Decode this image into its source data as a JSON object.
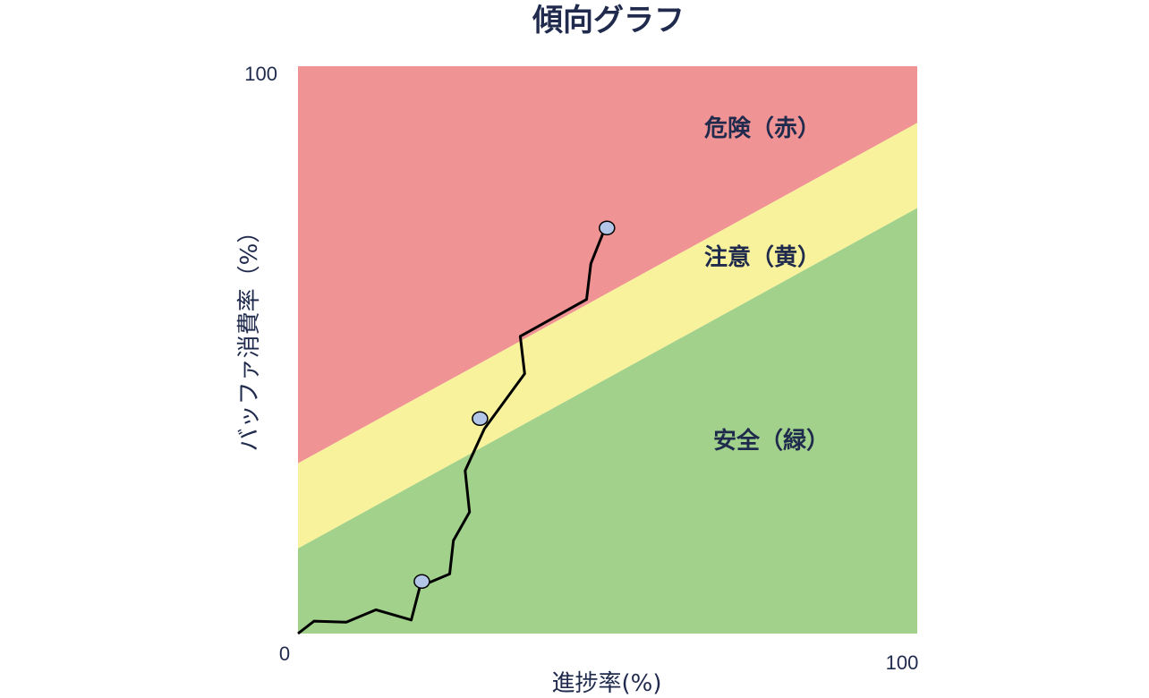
{
  "chart_data": {
    "type": "line",
    "title": "傾向グラフ",
    "xlabel": "進捗率(%)",
    "ylabel": "バッファ消費率（%）",
    "xlim": [
      0,
      100
    ],
    "ylim": [
      0,
      100
    ],
    "x_tick_labels": [
      "0",
      "100"
    ],
    "y_tick_labels": [
      "100"
    ],
    "grid": false,
    "zones": [
      {
        "label": "危険（赤）",
        "color": "#f09394",
        "lower_boundary": {
          "y_at_x0": 30,
          "y_at_x100": 90
        }
      },
      {
        "label": "注意（黄）",
        "color": "#f7f29b",
        "lower_boundary": {
          "y_at_x0": 15,
          "y_at_x100": 75
        }
      },
      {
        "label": "安全（緑）",
        "color": "#a2d18b",
        "lower_boundary": {
          "y_at_x0": 0,
          "y_at_x100": 0
        }
      }
    ],
    "series": [
      {
        "color": "#000000",
        "x": [
          0,
          2.6,
          7.8,
          12.6,
          18.3,
          19.7,
          24.5,
          25.1,
          27.7,
          27.0,
          30.1,
          36.6,
          35.9,
          46.6,
          47.3,
          49.6
        ],
        "y": [
          0,
          2.2,
          2.0,
          4.2,
          2.4,
          8.3,
          10.5,
          16.4,
          21.4,
          28.7,
          36.1,
          45.8,
          52.4,
          58.9,
          65.2,
          71.5
        ]
      }
    ],
    "markers": [
      {
        "x": 20.0,
        "y": 9.2,
        "color": "#b4c6e7"
      },
      {
        "x": 29.4,
        "y": 37.9,
        "color": "#b4c6e7"
      },
      {
        "x": 49.9,
        "y": 71.5,
        "color": "#b4c6e7"
      }
    ]
  }
}
